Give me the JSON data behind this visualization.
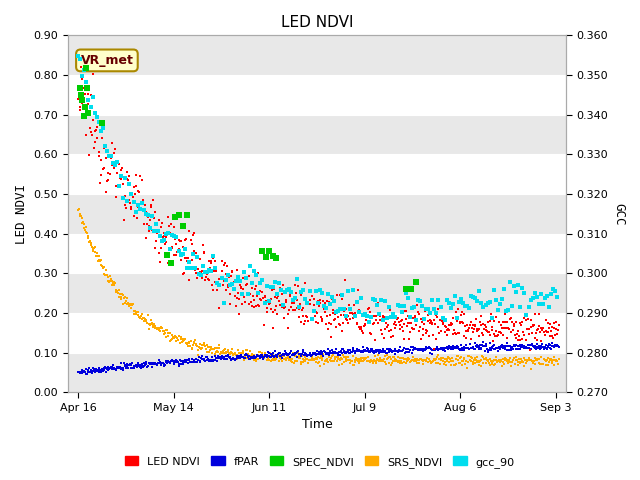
{
  "title": "LED NDVI",
  "xlabel": "Time",
  "ylabel_left": "LED NDVI",
  "ylabel_right": "GCC",
  "ylim_left": [
    0.0,
    0.9
  ],
  "ylim_right": [
    0.27,
    0.36
  ],
  "annotation": "VR_met",
  "xtick_labels": [
    "Apr 16",
    "May 14",
    "Jun 11",
    "Jul 9",
    "Aug 6",
    "Sep 3"
  ],
  "xtick_positions": [
    0,
    28,
    56,
    84,
    112,
    140
  ],
  "legend": [
    "LED NDVI",
    "fPAR",
    "SPEC_NDVI",
    "SRS_NDVI",
    "gcc_90"
  ],
  "colors": {
    "LED_NDVI": "#ff0000",
    "fPAR": "#0000dd",
    "SPEC_NDVI": "#00cc00",
    "SRS_NDVI": "#ffaa00",
    "gcc_90": "#00ddee"
  },
  "fig_bg": "#ffffff",
  "plot_bg": "#ffffff",
  "band_color": "#e8e8e8",
  "annotation_bg": "#ffffcc",
  "annotation_border": "#aa8800",
  "annotation_text_color": "#660000",
  "ytick_left": [
    0.0,
    0.1,
    0.2,
    0.3,
    0.4,
    0.5,
    0.6,
    0.7,
    0.8,
    0.9
  ],
  "ytick_right": [
    0.27,
    0.28,
    0.29,
    0.3,
    0.31,
    0.32,
    0.33,
    0.34,
    0.35,
    0.36
  ]
}
